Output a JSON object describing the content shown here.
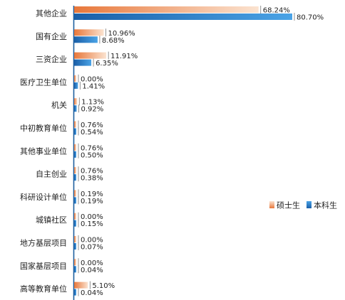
{
  "chart_data": {
    "type": "bar",
    "orientation": "horizontal",
    "categories": [
      "其他企业",
      "国有企业",
      "三资企业",
      "医疗卫生单位",
      "机关",
      "中初教育单位",
      "其他事业单位",
      "自主创业",
      "科研设计单位",
      "城镇社区",
      "地方基层项目",
      "国家基层项目",
      "高等教育单位"
    ],
    "series": [
      {
        "name": "硕士生",
        "values": [
          68.24,
          10.96,
          11.91,
          0.0,
          1.13,
          0.76,
          0.76,
          0.76,
          0.19,
          0.0,
          0.0,
          0.0,
          5.1
        ],
        "labels": [
          "68.24%",
          "10.96%",
          "11.91%",
          "0.00%",
          "1.13%",
          "0.76%",
          "0.76%",
          "0.76%",
          "0.19%",
          "0.00%",
          "0.00%",
          "0.00%",
          "5.10%"
        ],
        "color": "#ee8a50"
      },
      {
        "name": "本科生",
        "values": [
          80.7,
          8.68,
          6.35,
          1.41,
          0.92,
          0.54,
          0.5,
          0.38,
          0.19,
          0.15,
          0.07,
          0.04,
          0.04
        ],
        "labels": [
          "80.70%",
          "8.68%",
          "6.35%",
          "1.41%",
          "0.92%",
          "0.54%",
          "0.50%",
          "0.38%",
          "0.19%",
          "0.15%",
          "0.07%",
          "0.04%",
          "0.04%"
        ],
        "color": "#1f74c2"
      }
    ],
    "xlim": [
      0,
      80.7
    ],
    "legend_position": "right",
    "grid": false
  }
}
